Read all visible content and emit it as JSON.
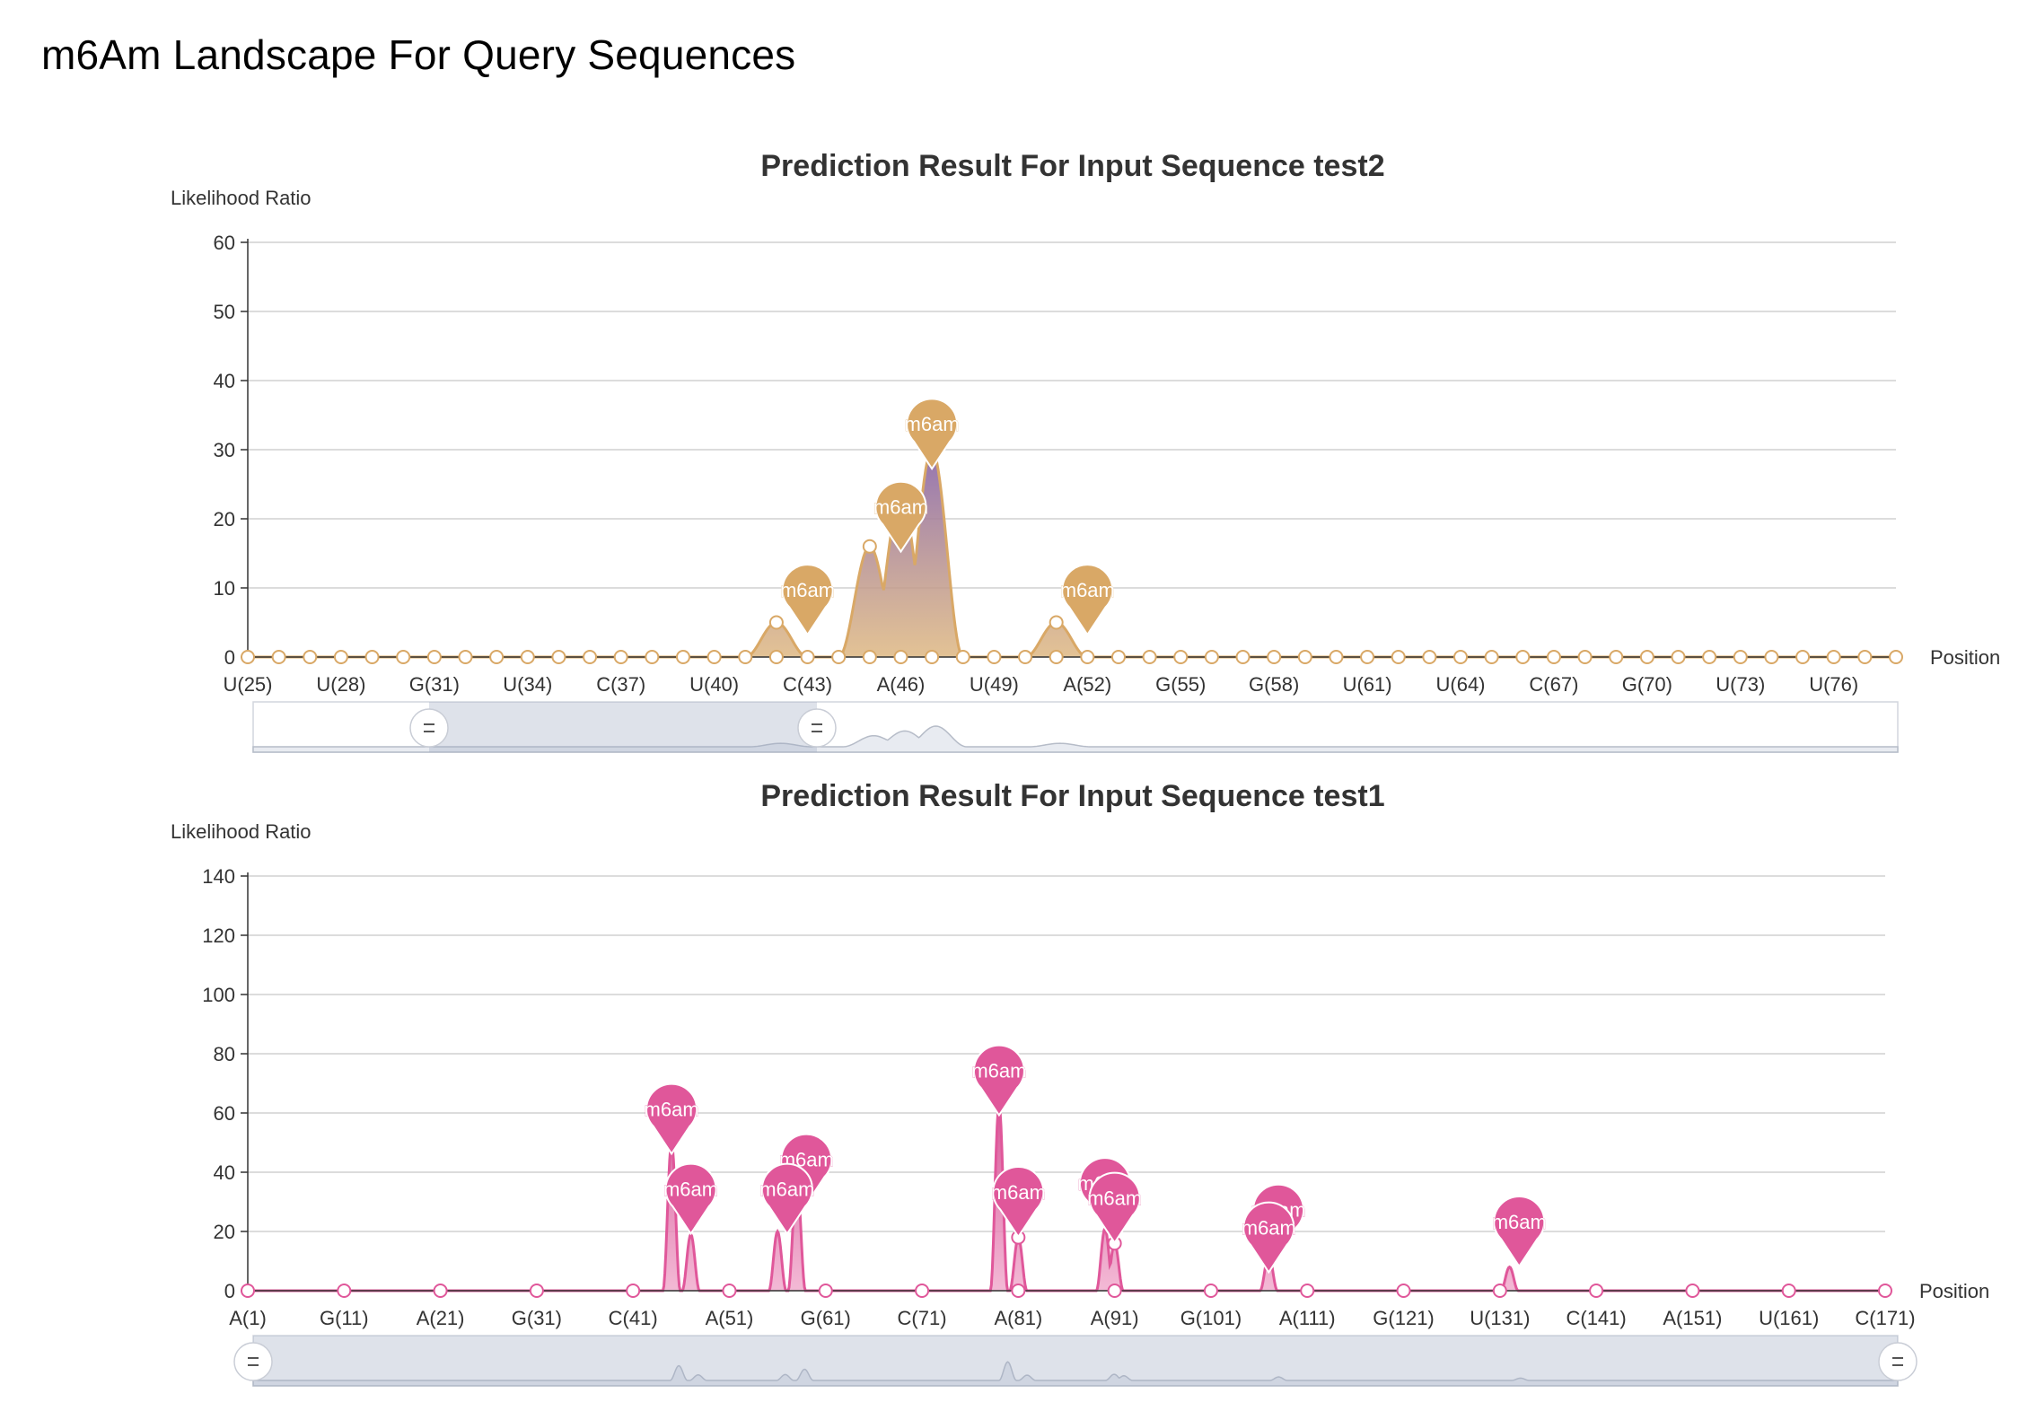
{
  "page": {
    "title": "m6Am Landscape For Query Sequences"
  },
  "chart_data": [
    {
      "type": "area",
      "title": "Prediction Result For Input Sequence test2",
      "ylabel": "Likelihood Ratio",
      "xlabel": "Position",
      "ylim": [
        0,
        60
      ],
      "yticks": [
        0,
        10,
        20,
        30,
        40,
        50,
        60
      ],
      "grid": true,
      "colors": {
        "line": "#d9a866",
        "marker": "#d9a866",
        "fill_top": "#8e6cad",
        "fill_bottom": "#dcb37a"
      },
      "x_start": 25,
      "x_tick_labels": [
        "U(25)",
        "U(28)",
        "G(31)",
        "U(34)",
        "C(37)",
        "U(40)",
        "C(43)",
        "A(46)",
        "U(49)",
        "A(52)",
        "G(55)",
        "G(58)",
        "U(61)",
        "U(64)",
        "C(67)",
        "G(70)",
        "U(73)",
        "U(76)"
      ],
      "x_tick_step": 3,
      "n_points": 54,
      "peaks": [
        {
          "position": 42,
          "value": 5
        },
        {
          "position": 45,
          "value": 16
        },
        {
          "position": 46,
          "value": 23
        },
        {
          "position": 47,
          "value": 30
        },
        {
          "position": 51,
          "value": 5
        }
      ],
      "markers": [
        {
          "position": 43,
          "value": 10,
          "label": "m6am"
        },
        {
          "position": 46,
          "value": 22,
          "label": "m6am"
        },
        {
          "position": 47,
          "value": 34,
          "label": "m6am"
        },
        {
          "position": 52,
          "value": 10,
          "label": "m6am"
        }
      ],
      "shown_points": [
        {
          "position": 42,
          "value": 5
        },
        {
          "position": 45,
          "value": 16
        },
        {
          "position": 51,
          "value": 5
        }
      ]
    },
    {
      "type": "area",
      "title": "Prediction Result For Input Sequence test1",
      "ylabel": "Likelihood Ratio",
      "xlabel": "Position",
      "ylim": [
        0,
        140
      ],
      "yticks": [
        0,
        20,
        40,
        60,
        80,
        100,
        120,
        140
      ],
      "grid": true,
      "colors": {
        "line": "#e0579a",
        "marker": "#e0579a",
        "fill_top": "#d44b91",
        "fill_bottom": "#f0a8cb"
      },
      "x_start": 1,
      "x_tick_labels": [
        "A(1)",
        "G(11)",
        "A(21)",
        "G(31)",
        "C(41)",
        "A(51)",
        "G(61)",
        "C(71)",
        "A(81)",
        "A(91)",
        "G(101)",
        "A(111)",
        "G(121)",
        "U(131)",
        "C(141)",
        "A(151)",
        "U(161)",
        "C(171)"
      ],
      "x_tick_step": 10,
      "n_points": 171,
      "point_every": 10,
      "peaks": [
        {
          "position": 45,
          "value": 50
        },
        {
          "position": 47,
          "value": 19
        },
        {
          "position": 56,
          "value": 20
        },
        {
          "position": 58,
          "value": 38
        },
        {
          "position": 79,
          "value": 63
        },
        {
          "position": 81,
          "value": 18
        },
        {
          "position": 90,
          "value": 21
        },
        {
          "position": 91,
          "value": 16
        },
        {
          "position": 107,
          "value": 12
        },
        {
          "position": 132,
          "value": 8
        }
      ],
      "markers": [
        {
          "position": 45,
          "value": 62,
          "label": "m6am"
        },
        {
          "position": 47,
          "value": 35,
          "label": "m6am"
        },
        {
          "position": 59,
          "value": 45,
          "label": "m6am"
        },
        {
          "position": 57,
          "value": 35,
          "label": "m6am"
        },
        {
          "position": 79,
          "value": 75,
          "label": "m6am"
        },
        {
          "position": 81,
          "value": 34,
          "label": "m6am"
        },
        {
          "position": 90,
          "value": 37,
          "label": "m6am"
        },
        {
          "position": 91,
          "value": 32,
          "label": "m6am"
        },
        {
          "position": 108,
          "value": 28,
          "label": "m6am"
        },
        {
          "position": 107,
          "value": 22,
          "label": "m6am"
        },
        {
          "position": 133,
          "value": 24,
          "label": "m6am"
        }
      ],
      "shown_points": [
        {
          "position": 81,
          "value": 18
        },
        {
          "position": 91,
          "value": 16
        }
      ]
    }
  ]
}
